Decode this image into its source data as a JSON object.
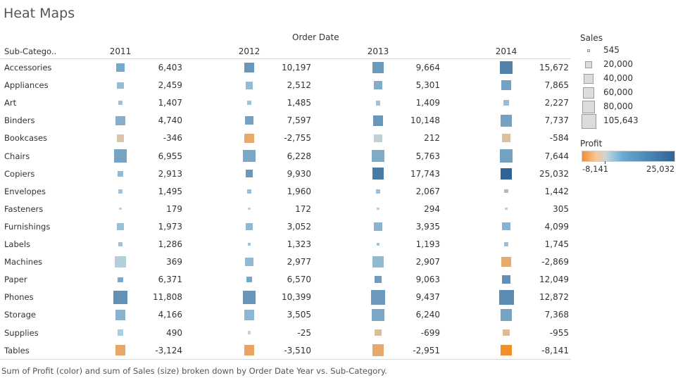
{
  "title": "Heat Maps",
  "column_header": "Order Date",
  "row_dimension_header": "Sub-Catego..",
  "caption": "Sum of Profit (color) and sum of Sales (size) broken down by Order Date Year vs. Sub-Category.",
  "legends": {
    "size": {
      "title": "Sales",
      "items": [
        {
          "label": "545",
          "value": 545
        },
        {
          "label": "20,000",
          "value": 20000
        },
        {
          "label": "40,000",
          "value": 40000
        },
        {
          "label": "60,000",
          "value": 60000
        },
        {
          "label": "80,000",
          "value": 80000
        },
        {
          "label": "105,643",
          "value": 105643
        }
      ]
    },
    "color": {
      "title": "Profit",
      "min_label": "-8,141",
      "max_label": "25,032",
      "min": -8141,
      "max": 25032,
      "colors": {
        "negative": "#f28e2b",
        "zero": "#d4d2c8",
        "positive": "#2f6496"
      }
    }
  },
  "chart_data": {
    "type": "heatmap",
    "title": "Heat Maps",
    "color_measure": "Profit",
    "size_measure": "Sales",
    "years": [
      "2011",
      "2012",
      "2013",
      "2014"
    ],
    "sub_categories": [
      "Accessories",
      "Appliances",
      "Art",
      "Binders",
      "Bookcases",
      "Chairs",
      "Copiers",
      "Envelopes",
      "Fasteners",
      "Furnishings",
      "Labels",
      "Machines",
      "Paper",
      "Phones",
      "Storage",
      "Supplies",
      "Tables"
    ],
    "profit": [
      [
        6403,
        10197,
        9664,
        15672
      ],
      [
        2459,
        2512,
        5301,
        7865
      ],
      [
        1407,
        1485,
        1409,
        2227
      ],
      [
        4740,
        7597,
        10148,
        7737
      ],
      [
        -346,
        -2755,
        212,
        -584
      ],
      [
        6955,
        6228,
        5763,
        7644
      ],
      [
        2913,
        9930,
        17743,
        25032
      ],
      [
        1495,
        1960,
        2067,
        1442
      ],
      [
        179,
        172,
        294,
        305
      ],
      [
        1973,
        3052,
        3935,
        4099
      ],
      [
        1286,
        1323,
        1193,
        1745
      ],
      [
        369,
        2977,
        2907,
        -2869
      ],
      [
        6371,
        6570,
        9063,
        12049
      ],
      [
        11808,
        10399,
        9437,
        12872
      ],
      [
        4166,
        3505,
        6240,
        7368
      ],
      [
        490,
        -25,
        -699,
        -955
      ],
      [
        -3124,
        -3510,
        -2951,
        -8141
      ]
    ],
    "profit_labels": [
      [
        "6,403",
        "10,197",
        "9,664",
        "15,672"
      ],
      [
        "2,459",
        "2,512",
        "5,301",
        "7,865"
      ],
      [
        "1,407",
        "1,485",
        "1,409",
        "2,227"
      ],
      [
        "4,740",
        "7,597",
        "10,148",
        "7,737"
      ],
      [
        "-346",
        "-2,755",
        "212",
        "-584"
      ],
      [
        "6,955",
        "6,228",
        "5,763",
        "7,644"
      ],
      [
        "2,913",
        "9,930",
        "17,743",
        "25,032"
      ],
      [
        "1,495",
        "1,960",
        "2,067",
        "1,442"
      ],
      [
        "179",
        "172",
        "294",
        "305"
      ],
      [
        "1,973",
        "3,052",
        "3,935",
        "4,099"
      ],
      [
        "1,286",
        "1,323",
        "1,193",
        "1,745"
      ],
      [
        "369",
        "2,977",
        "2,907",
        "-2,869"
      ],
      [
        "6,371",
        "6,570",
        "9,063",
        "12,049"
      ],
      [
        "11,808",
        "10,399",
        "9,437",
        "12,872"
      ],
      [
        "4,166",
        "3,505",
        "6,240",
        "7,368"
      ],
      [
        "490",
        "-25",
        "-699",
        "-955"
      ],
      [
        "-3,124",
        "-3,510",
        "-2,951",
        "-8,141"
      ]
    ],
    "sales": [
      [
        28000,
        45000,
        56000,
        82000
      ],
      [
        15000,
        23000,
        26000,
        42000
      ],
      [
        6000,
        6000,
        7000,
        9000
      ],
      [
        39000,
        28000,
        49000,
        65000
      ],
      [
        20000,
        38000,
        27000,
        30000
      ],
      [
        78000,
        70000,
        74000,
        83000
      ],
      [
        10000,
        22000,
        60000,
        57000
      ],
      [
        4000,
        4500,
        5000,
        3500
      ],
      [
        545,
        545,
        545,
        545
      ],
      [
        16000,
        19000,
        29000,
        24000
      ],
      [
        3000,
        2000,
        2500,
        4000
      ],
      [
        53000,
        28000,
        51000,
        44000
      ],
      [
        8000,
        12000,
        21000,
        28000
      ],
      [
        87000,
        84000,
        100000,
        105643
      ],
      [
        49000,
        44000,
        66000,
        64000
      ],
      [
        11000,
        1500,
        17000,
        15000
      ],
      [
        46000,
        44000,
        60000,
        50000
      ]
    ]
  }
}
